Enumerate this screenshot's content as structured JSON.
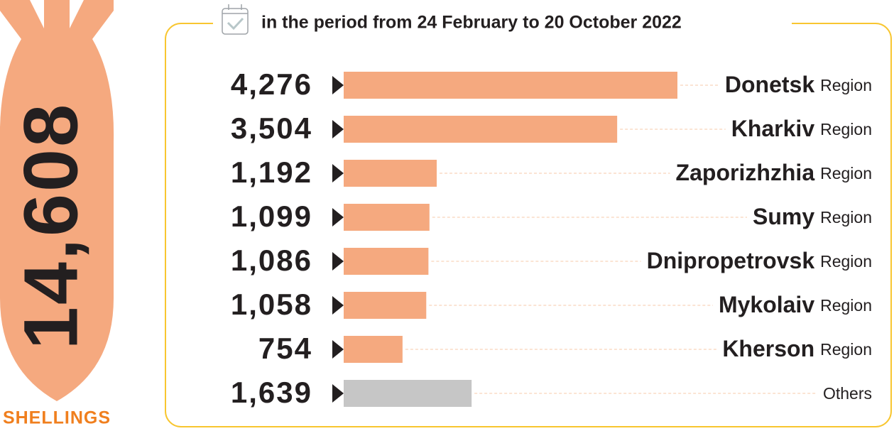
{
  "total_label": "14,608",
  "total_caption": "SHELLINGS",
  "chart_data": {
    "type": "bar",
    "orientation": "horizontal",
    "subtitle": "in the period from 24 February to 20 October 2022",
    "categories": [
      "Donetsk",
      "Kharkiv",
      "Zaporizhzhia",
      "Sumy",
      "Dnipropetrovsk",
      "Mykolaiv",
      "Kherson",
      "Others"
    ],
    "category_suffixes": [
      "Region",
      "Region",
      "Region",
      "Region",
      "Region",
      "Region",
      "Region",
      null
    ],
    "values": [
      4276,
      3504,
      1192,
      1099,
      1086,
      1058,
      754,
      1639
    ],
    "value_labels": [
      "4,276",
      "3,504",
      "1,192",
      "1,099",
      "1,086",
      "1,058",
      "754",
      "1,639"
    ],
    "colors": [
      "#f5a97f",
      "#f5a97f",
      "#f5a97f",
      "#f5a97f",
      "#f5a97f",
      "#f5a97f",
      "#f5a97f",
      "#c6c6c6"
    ]
  }
}
